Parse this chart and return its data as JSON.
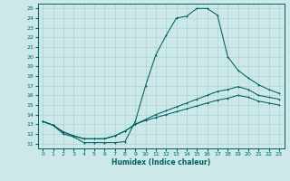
{
  "xlabel": "Humidex (Indice chaleur)",
  "bg_color": "#cce8e8",
  "grid_color": "#aad4d4",
  "line_color": "#006060",
  "xlim": [
    -0.5,
    23.5
  ],
  "ylim": [
    10.5,
    25.5
  ],
  "xticks": [
    0,
    1,
    2,
    3,
    4,
    5,
    6,
    7,
    8,
    9,
    10,
    11,
    12,
    13,
    14,
    15,
    16,
    17,
    18,
    19,
    20,
    21,
    22,
    23
  ],
  "yticks": [
    11,
    12,
    13,
    14,
    15,
    16,
    17,
    18,
    19,
    20,
    21,
    22,
    23,
    24,
    25
  ],
  "line1_x": [
    0,
    1,
    2,
    3,
    4,
    5,
    6,
    7,
    8,
    9,
    10,
    11,
    12,
    13,
    14,
    15,
    16,
    17,
    18,
    19,
    20,
    21,
    22,
    23
  ],
  "line1_y": [
    13.3,
    12.9,
    12.0,
    11.7,
    11.1,
    11.1,
    11.1,
    11.1,
    11.2,
    13.3,
    17.0,
    20.2,
    22.2,
    24.0,
    24.2,
    25.0,
    25.0,
    24.3,
    20.0,
    18.6,
    17.8,
    17.1,
    16.6,
    16.2
  ],
  "line2_x": [
    0,
    1,
    2,
    3,
    4,
    5,
    6,
    7,
    8,
    9,
    10,
    11,
    12,
    13,
    14,
    15,
    16,
    17,
    18,
    19,
    20,
    21,
    22,
    23
  ],
  "line2_y": [
    13.3,
    12.9,
    12.2,
    11.8,
    11.5,
    11.5,
    11.5,
    11.8,
    12.3,
    13.0,
    13.5,
    14.0,
    14.4,
    14.8,
    15.2,
    15.6,
    16.0,
    16.4,
    16.6,
    16.9,
    16.6,
    16.0,
    15.8,
    15.6
  ],
  "line3_x": [
    0,
    1,
    2,
    3,
    4,
    5,
    6,
    7,
    8,
    9,
    10,
    11,
    12,
    13,
    14,
    15,
    16,
    17,
    18,
    19,
    20,
    21,
    22,
    23
  ],
  "line3_y": [
    13.3,
    12.9,
    12.2,
    11.8,
    11.5,
    11.5,
    11.5,
    11.8,
    12.3,
    13.0,
    13.4,
    13.7,
    14.0,
    14.3,
    14.6,
    14.9,
    15.2,
    15.5,
    15.7,
    16.0,
    15.8,
    15.4,
    15.2,
    15.0
  ]
}
